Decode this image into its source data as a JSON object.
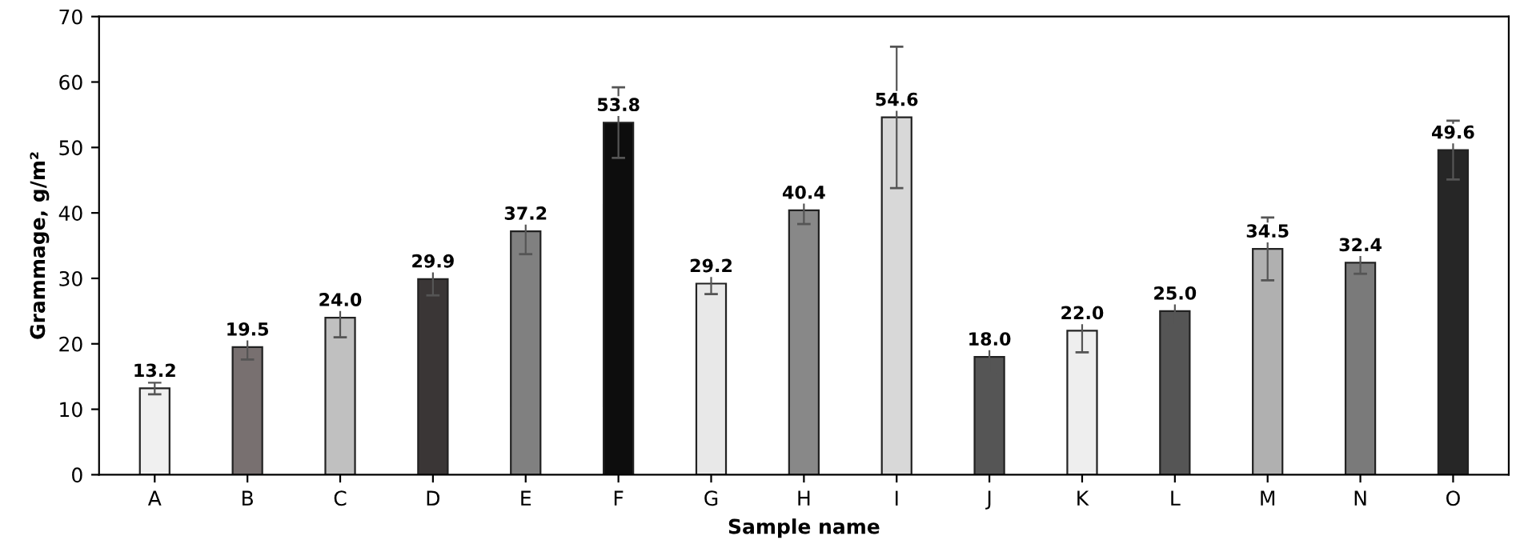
{
  "chart_data": {
    "type": "bar",
    "xlabel": "Sample name",
    "ylabel": "Grammage, g/m²",
    "categories": [
      "A",
      "B",
      "C",
      "D",
      "E",
      "F",
      "G",
      "H",
      "I",
      "J",
      "K",
      "L",
      "M",
      "N",
      "O"
    ],
    "values": [
      13.2,
      19.5,
      24.0,
      29.9,
      37.2,
      53.8,
      29.2,
      40.4,
      54.6,
      18.0,
      22.0,
      25.0,
      34.5,
      32.4,
      49.6
    ],
    "errors": [
      0.9,
      1.9,
      3.0,
      2.5,
      3.5,
      5.4,
      1.6,
      2.1,
      10.8,
      2.5,
      3.3,
      2.1,
      4.8,
      1.7,
      4.5
    ],
    "colors": [
      "#f0f0f0",
      "#787070",
      "#c0c0c0",
      "#3a3636",
      "#808080",
      "#0d0d0d",
      "#e8e8e8",
      "#888888",
      "#d8d8d8",
      "#555555",
      "#eeeeee",
      "#555555",
      "#b0b0b0",
      "#7a7a7a",
      "#262626"
    ],
    "value_labels": [
      "13.2",
      "19.5",
      "24.0",
      "29.9",
      "37.2",
      "53.8",
      "29.2",
      "40.4",
      "54.6",
      "18.0",
      "22.0",
      "25.0",
      "34.5",
      "32.4",
      "49.6"
    ],
    "ylim": [
      0,
      70
    ],
    "yticks": [
      0,
      10,
      20,
      30,
      40,
      50,
      60,
      70
    ],
    "grid": false,
    "legend": false
  }
}
